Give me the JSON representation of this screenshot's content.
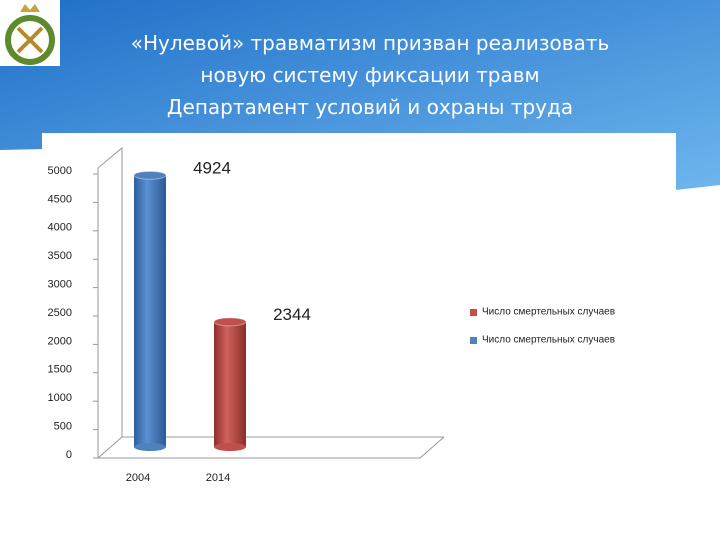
{
  "slide": {
    "title_lines": [
      "«Нулевой» травматизм призван  реализовать",
      "новую систему  фиксации травм",
      "Департамент условий и охраны труда"
    ]
  },
  "chart_data": {
    "type": "bar",
    "categories": [
      "2004",
      "2014"
    ],
    "series": [
      {
        "name": "Число смертельных случаев",
        "color": "#c0504d",
        "values": [
          null,
          2344
        ]
      },
      {
        "name": "Число смертельных случаев",
        "color": "#4f81bd",
        "values": [
          4924,
          null
        ]
      }
    ],
    "ylim": [
      0,
      5000
    ],
    "yticks": [
      0,
      500,
      1000,
      1500,
      2000,
      2500,
      3000,
      3500,
      4000,
      4500,
      5000
    ],
    "legend": "right"
  }
}
